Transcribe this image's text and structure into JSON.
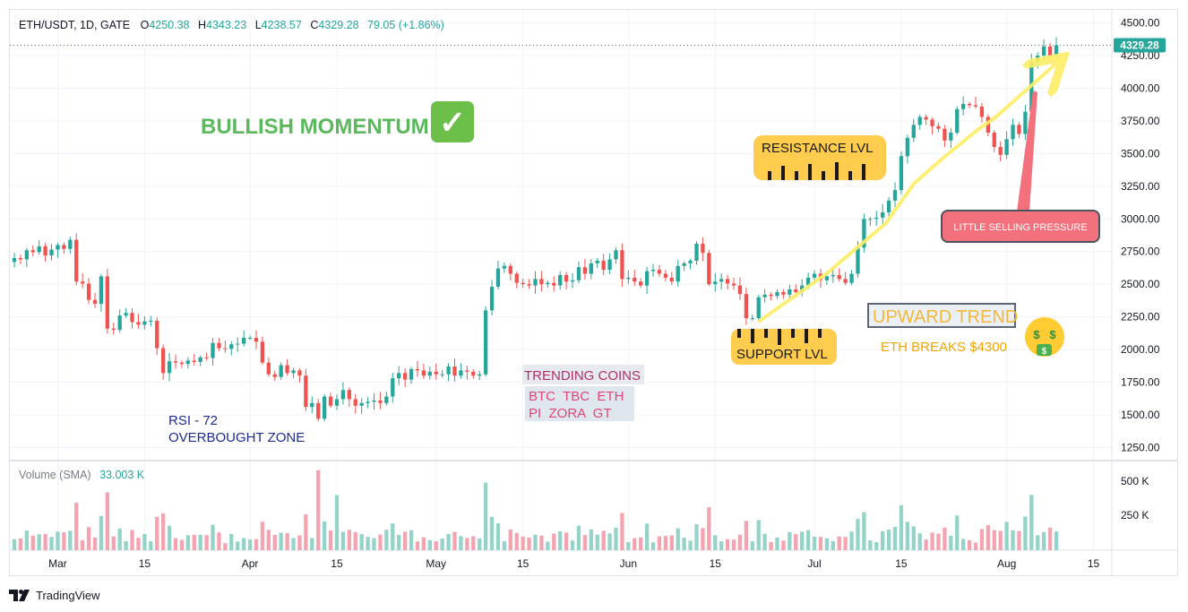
{
  "header": {
    "symbol": "ETH/USDT, 1D, GATE",
    "o_label": "O",
    "o_value": "4250.38",
    "h_label": "H",
    "h_value": "4343.23",
    "l_label": "L",
    "l_value": "4238.57",
    "c_label": "C",
    "c_value": "4329.28",
    "change": "79.05 (+1.86%)"
  },
  "price_tag": "4329.28",
  "volume_label": "Volume (SMA)",
  "volume_value": "33.003 K",
  "volume_ticks": [
    "500 K",
    "250 K"
  ],
  "annotations": {
    "bullish": "BULLISH MOMENTUM",
    "check": "✓",
    "resistance": "RESISTANCE LVL",
    "support": "SUPPORT LVL",
    "selling": "LITTLE SELLING PRESSURE",
    "upward": "UPWARD TREND",
    "eth_breaks": "ETH BREAKS $4300",
    "trending_title": "TRENDING COINS",
    "trending_line1": "BTC  TBC  ETH",
    "trending_line2": "PI  ZORA  GT",
    "rsi_line1": "RSI - 72",
    "rsi_line2": "OVERBOUGHT ZONE"
  },
  "footer": {
    "brand": "TradingView"
  },
  "colors": {
    "up": "#26a69a",
    "down": "#ef5350",
    "vol_up": "#93d3c8",
    "vol_down": "#f4a3b0",
    "price_tag": "#26a69a",
    "green_text": "#5cb85c",
    "orange": "#f0a500"
  },
  "chart_data": {
    "type": "candlestick",
    "symbol": "ETH/USDT",
    "interval": "1D",
    "exchange": "GATE",
    "ylim": [
      1150,
      4600
    ],
    "y_ticks": [
      4500,
      4250,
      4000,
      3750,
      3500,
      3250,
      3000,
      2750,
      2500,
      2250,
      2000,
      1750,
      1500,
      1250
    ],
    "x_ticks": [
      "Mar",
      "15",
      "Apr",
      "15",
      "May",
      "15",
      "Jun",
      "15",
      "Jul",
      "15",
      "Aug",
      "15"
    ],
    "x_tick_days": [
      7,
      21,
      38,
      52,
      68,
      82,
      99,
      113,
      129,
      143,
      160,
      174
    ],
    "volume_ylim": [
      0,
      650000
    ],
    "close": [
      2700,
      2690,
      2760,
      2745,
      2790,
      2720,
      2765,
      2800,
      2770,
      2840,
      2520,
      2505,
      2380,
      2350,
      2560,
      2160,
      2150,
      2260,
      2280,
      2210,
      2190,
      2215,
      2220,
      2010,
      1820,
      1910,
      1900,
      1890,
      1915,
      1905,
      1940,
      1935,
      2050,
      2010,
      2005,
      2040,
      2045,
      2090,
      2090,
      2060,
      1900,
      1810,
      1790,
      1880,
      1820,
      1840,
      1800,
      1560,
      1590,
      1470,
      1640,
      1570,
      1620,
      1690,
      1620,
      1570,
      1590,
      1600,
      1610,
      1590,
      1640,
      1780,
      1820,
      1770,
      1850,
      1840,
      1800,
      1830,
      1810,
      1810,
      1870,
      1800,
      1840,
      1830,
      1800,
      1810,
      2300,
      2480,
      2620,
      2640,
      2580,
      2510,
      2500,
      2490,
      2540,
      2500,
      2510,
      2490,
      2570,
      2520,
      2530,
      2630,
      2580,
      2660,
      2680,
      2610,
      2690,
      2760,
      2540,
      2550,
      2520,
      2490,
      2600,
      2610,
      2580,
      2550,
      2520,
      2640,
      2660,
      2680,
      2810,
      2740,
      2500,
      2520,
      2540,
      2505,
      2490,
      2425,
      2240,
      2240,
      2400,
      2420,
      2410,
      2440,
      2420,
      2460,
      2440,
      2490,
      2550,
      2580,
      2530,
      2560,
      2570,
      2540,
      2510,
      2580,
      2780,
      3000,
      3000,
      3010,
      3050,
      3140,
      3220,
      3480,
      3620,
      3720,
      3780,
      3760,
      3710,
      3690,
      3600,
      3660,
      3840,
      3880,
      3870,
      3860,
      3780,
      3660,
      3550,
      3490,
      3610,
      3720,
      3650,
      3820,
      4200,
      4250,
      4320,
      4250,
      4329
    ],
    "volume_sma_last": 33003
  }
}
